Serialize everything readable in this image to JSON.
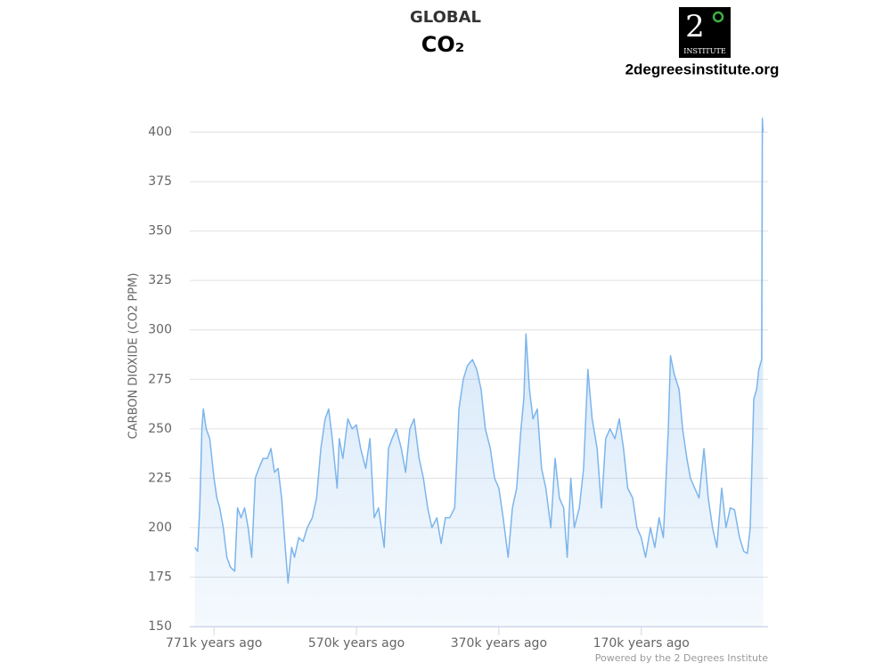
{
  "chart_data": {
    "type": "area",
    "title": "GLOBAL",
    "subtitle": "CO₂",
    "y_label": "CARBON DIOXIDE (CO2 PPM)",
    "credit": "Powered by the 2 Degrees Institute",
    "color": "#7cb5ec",
    "grid": true,
    "xlim": [
      805,
      -7
    ],
    "ylim": [
      150,
      425
    ],
    "yticks": [
      150,
      175,
      200,
      225,
      250,
      275,
      300,
      325,
      350,
      375,
      400
    ],
    "xticks": [
      {
        "value": 771,
        "label": "771k years ago"
      },
      {
        "value": 571,
        "label": "570k years ago"
      },
      {
        "value": 371,
        "label": "370k years ago"
      },
      {
        "value": 171,
        "label": "170k years ago"
      }
    ],
    "x": [
      798,
      794,
      791,
      788,
      786,
      782,
      777,
      771,
      767,
      763,
      758,
      753,
      748,
      742,
      738,
      733,
      728,
      723,
      718,
      713,
      708,
      702,
      696,
      691,
      686,
      681,
      676,
      671,
      667,
      662,
      658,
      652,
      646,
      640,
      633,
      627,
      621,
      615,
      610,
      605,
      598,
      595,
      590,
      583,
      577,
      571,
      565,
      558,
      552,
      546,
      540,
      532,
      526,
      521,
      515,
      508,
      502,
      496,
      490,
      483,
      477,
      471,
      465,
      458,
      452,
      446,
      440,
      433,
      427,
      421,
      415,
      408,
      402,
      396,
      390,
      383,
      377,
      371,
      365,
      358,
      352,
      346,
      340,
      336,
      333,
      328,
      323,
      317,
      311,
      305,
      298,
      292,
      286,
      280,
      275,
      270,
      265,
      258,
      252,
      246,
      240,
      233,
      227,
      221,
      215,
      208,
      202,
      196,
      190,
      183,
      177,
      171,
      165,
      158,
      152,
      146,
      140,
      133,
      130,
      125,
      118,
      113,
      107,
      102,
      96,
      90,
      83,
      77,
      71,
      65,
      58,
      52,
      46,
      40,
      33,
      27,
      22,
      18,
      13,
      9,
      6,
      2,
      1,
      0
    ],
    "values": [
      190,
      188,
      210,
      250,
      260,
      250,
      245,
      225,
      215,
      210,
      200,
      185,
      180,
      178,
      210,
      205,
      210,
      200,
      185,
      225,
      230,
      235,
      235,
      240,
      228,
      230,
      215,
      190,
      172,
      190,
      185,
      195,
      193,
      200,
      205,
      215,
      240,
      255,
      260,
      245,
      220,
      245,
      235,
      255,
      250,
      252,
      240,
      230,
      245,
      205,
      210,
      190,
      240,
      245,
      250,
      240,
      228,
      250,
      255,
      235,
      225,
      210,
      200,
      205,
      192,
      205,
      205,
      210,
      260,
      275,
      282,
      285,
      280,
      270,
      250,
      240,
      225,
      220,
      205,
      185,
      210,
      220,
      250,
      265,
      298,
      270,
      255,
      260,
      230,
      220,
      200,
      235,
      215,
      210,
      185,
      225,
      200,
      210,
      230,
      280,
      255,
      240,
      210,
      245,
      250,
      245,
      255,
      240,
      220,
      215,
      200,
      195,
      185,
      200,
      190,
      205,
      195,
      250,
      287,
      278,
      270,
      250,
      235,
      225,
      220,
      215,
      240,
      215,
      200,
      190,
      220,
      200,
      210,
      209,
      195,
      188,
      187,
      200,
      265,
      270,
      280,
      285,
      407,
      400
    ]
  },
  "logo": {
    "numeral": "2",
    "caption": "INSTITUTE",
    "url": "2degreesinstitute.org"
  }
}
